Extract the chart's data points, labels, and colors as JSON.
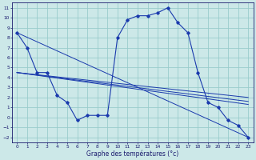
{
  "xlabel": "Graphe des températures (°c)",
  "background_color": "#cce8e8",
  "grid_color": "#99cccc",
  "line_color": "#1a3aad",
  "xmin": -0.5,
  "xmax": 23.5,
  "ymin": -2.5,
  "ymax": 11.5,
  "yticks": [
    -2,
    -1,
    0,
    1,
    2,
    3,
    4,
    5,
    6,
    7,
    8,
    9,
    10,
    11
  ],
  "xticks": [
    0,
    1,
    2,
    3,
    4,
    5,
    6,
    7,
    8,
    9,
    10,
    11,
    12,
    13,
    14,
    15,
    16,
    17,
    18,
    19,
    20,
    21,
    22,
    23
  ],
  "main_x": [
    0,
    1,
    2,
    3,
    4,
    5,
    6,
    7,
    8,
    9,
    10,
    11,
    12,
    13,
    14,
    15,
    16,
    17,
    18,
    19,
    20,
    21,
    22,
    23
  ],
  "main_y": [
    8.5,
    7.0,
    4.5,
    4.5,
    2.2,
    1.5,
    -0.3,
    0.2,
    0.2,
    0.2,
    8.0,
    9.8,
    10.2,
    10.2,
    10.5,
    11.0,
    9.5,
    8.5,
    4.5,
    1.5,
    1.0,
    -0.3,
    -0.8,
    -2.0
  ],
  "trend_lines": [
    {
      "x0": 0,
      "y0": 8.5,
      "x1": 23,
      "y1": -2.0
    },
    {
      "x0": 0,
      "y0": 4.5,
      "x1": 23,
      "y1": 2.0
    },
    {
      "x0": 0,
      "y0": 4.5,
      "x1": 23,
      "y1": 1.6
    },
    {
      "x0": 0,
      "y0": 4.5,
      "x1": 23,
      "y1": 1.3
    }
  ]
}
